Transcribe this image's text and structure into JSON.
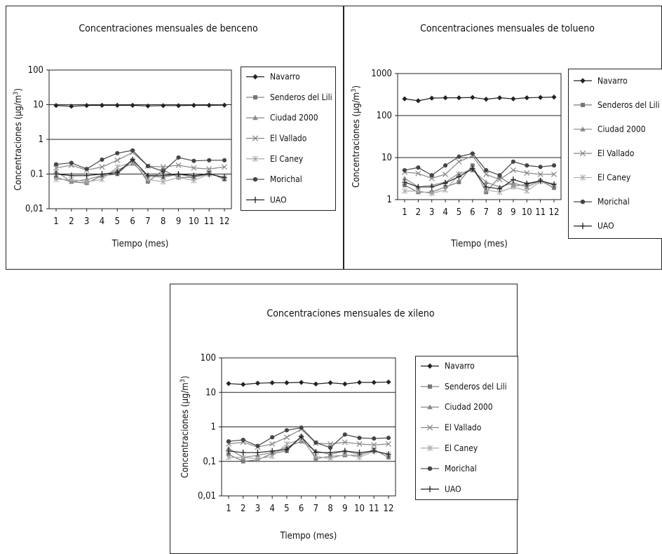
{
  "chart_data": [
    {
      "type": "line",
      "title": "Concentraciones mensuales de benceno",
      "xlabel": "Tiempo (mes)",
      "ylabel": "Concentraciones (µg/m",
      "ylabel_sup": "3",
      "ylabel_end": ")",
      "yscale": "log",
      "ylim": [
        0.01,
        100
      ],
      "yticks": [
        "0,01",
        "0.1",
        "1",
        "10",
        "100"
      ],
      "categories": [
        "1",
        "2",
        "3",
        "4",
        "5",
        "6",
        "7",
        "8",
        "9",
        "10",
        "11",
        "12"
      ],
      "series": [
        {
          "name": "Navarro",
          "values": [
            9.5,
            9,
            9.5,
            9.6,
            9.6,
            9.6,
            9.2,
            9.4,
            9.4,
            9.6,
            9.6,
            9.7
          ]
        },
        {
          "name": "Senderos del Lili",
          "values": [
            0.08,
            0.06,
            0.055,
            0.09,
            0.1,
            0.25,
            0.06,
            0.13,
            0.08,
            0.08,
            0.11,
            0.07
          ]
        },
        {
          "name": "Ciudad 2000",
          "values": [
            0.12,
            0.06,
            0.07,
            0.09,
            0.13,
            0.2,
            0.09,
            0.08,
            0.1,
            0.08,
            0.1,
            0.08
          ]
        },
        {
          "name": "El Vallado",
          "values": [
            0.15,
            0.18,
            0.13,
            0.16,
            0.25,
            0.42,
            0.17,
            0.16,
            0.18,
            0.15,
            0.14,
            0.16
          ]
        },
        {
          "name": "El Caney",
          "values": [
            0.07,
            0.07,
            0.06,
            0.07,
            0.16,
            0.22,
            0.07,
            0.06,
            0.08,
            0.065,
            0.1,
            0.08
          ]
        },
        {
          "name": "Morichal",
          "values": [
            0.19,
            0.21,
            0.14,
            0.26,
            0.4,
            0.48,
            0.17,
            0.12,
            0.3,
            0.24,
            0.25,
            0.25
          ]
        },
        {
          "name": "UAO",
          "values": [
            0.1,
            0.09,
            0.09,
            0.1,
            0.11,
            0.26,
            0.09,
            0.09,
            0.1,
            0.09,
            0.1,
            0.08
          ]
        }
      ]
    },
    {
      "type": "line",
      "title": "Concentraciones mensuales de tolueno",
      "xlabel": "Tiempo (mes)",
      "ylabel": "Concentraciones (µg/m",
      "ylabel_sup": "3",
      "ylabel_end": ")",
      "yscale": "log",
      "ylim": [
        1,
        1000
      ],
      "yticks": [
        "1",
        "10",
        "100",
        "1000"
      ],
      "categories": [
        "1",
        "2",
        "3",
        "4",
        "5",
        "6",
        "7",
        "8",
        "9",
        "10",
        "11",
        "12"
      ],
      "series": [
        {
          "name": "Navarro",
          "values": [
            250,
            225,
            260,
            265,
            265,
            270,
            245,
            265,
            250,
            265,
            270,
            275
          ]
        },
        {
          "name": "Senderos del Lili",
          "values": [
            2.2,
            1.5,
            1.5,
            2,
            2.6,
            6.5,
            1.5,
            3.5,
            2.1,
            2.3,
            2.8,
            1.9
          ]
        },
        {
          "name": "Ciudad 2000",
          "values": [
            3.2,
            2,
            2.2,
            2.6,
            4.2,
            5,
            2.6,
            2,
            2.5,
            2,
            2.8,
            2.3
          ]
        },
        {
          "name": "El Vallado",
          "values": [
            4.5,
            4.2,
            3.2,
            4,
            8,
            11,
            4,
            3,
            5,
            4.3,
            4,
            4
          ]
        },
        {
          "name": "El Caney",
          "values": [
            1.6,
            1.6,
            1.4,
            1.7,
            4,
            5.5,
            1.7,
            1.5,
            2,
            1.6,
            2.7,
            2.2
          ]
        },
        {
          "name": "Morichal",
          "values": [
            5,
            5.8,
            3.8,
            6.5,
            10.5,
            12.5,
            5,
            3.8,
            8,
            6.5,
            6,
            6.5
          ]
        },
        {
          "name": "UAO",
          "values": [
            2.6,
            2,
            2,
            2.5,
            3.5,
            5.5,
            2,
            1.8,
            3,
            2.4,
            2.8,
            2.3
          ]
        }
      ]
    },
    {
      "type": "line",
      "title": "Concentraciones mensuales de xileno",
      "xlabel": "Tiempo (mes)",
      "ylabel": "Concentraciones (µg/m",
      "ylabel_sup": "3",
      "ylabel_end": ")",
      "yscale": "log",
      "ylim": [
        0.01,
        100
      ],
      "yticks": [
        "0,01",
        "0,1",
        "1",
        "10",
        "100"
      ],
      "categories": [
        "1",
        "2",
        "3",
        "4",
        "5",
        "6",
        "7",
        "8",
        "9",
        "10",
        "11",
        "12"
      ],
      "series": [
        {
          "name": "Navarro",
          "values": [
            18,
            17,
            18.5,
            19,
            19,
            19.5,
            17.5,
            19,
            17.5,
            19.5,
            19.5,
            20
          ]
        },
        {
          "name": "Senderos del Lili",
          "values": [
            0.16,
            0.1,
            0.11,
            0.17,
            0.2,
            0.52,
            0.12,
            0.14,
            0.15,
            0.15,
            0.22,
            0.13
          ]
        },
        {
          "name": "Ciudad 2000",
          "values": [
            0.24,
            0.13,
            0.15,
            0.18,
            0.26,
            0.38,
            0.2,
            0.16,
            0.2,
            0.16,
            0.2,
            0.16
          ]
        },
        {
          "name": "El Vallado",
          "values": [
            0.32,
            0.36,
            0.26,
            0.32,
            0.5,
            0.85,
            0.34,
            0.32,
            0.36,
            0.32,
            0.3,
            0.32
          ]
        },
        {
          "name": "El Caney",
          "values": [
            0.13,
            0.13,
            0.12,
            0.14,
            0.32,
            0.44,
            0.14,
            0.12,
            0.16,
            0.13,
            0.2,
            0.16
          ]
        },
        {
          "name": "Morichal",
          "values": [
            0.38,
            0.42,
            0.28,
            0.5,
            0.8,
            0.95,
            0.35,
            0.25,
            0.6,
            0.48,
            0.46,
            0.48
          ]
        },
        {
          "name": "UAO",
          "values": [
            0.2,
            0.18,
            0.18,
            0.2,
            0.22,
            0.52,
            0.18,
            0.18,
            0.2,
            0.18,
            0.2,
            0.16
          ]
        }
      ]
    }
  ]
}
